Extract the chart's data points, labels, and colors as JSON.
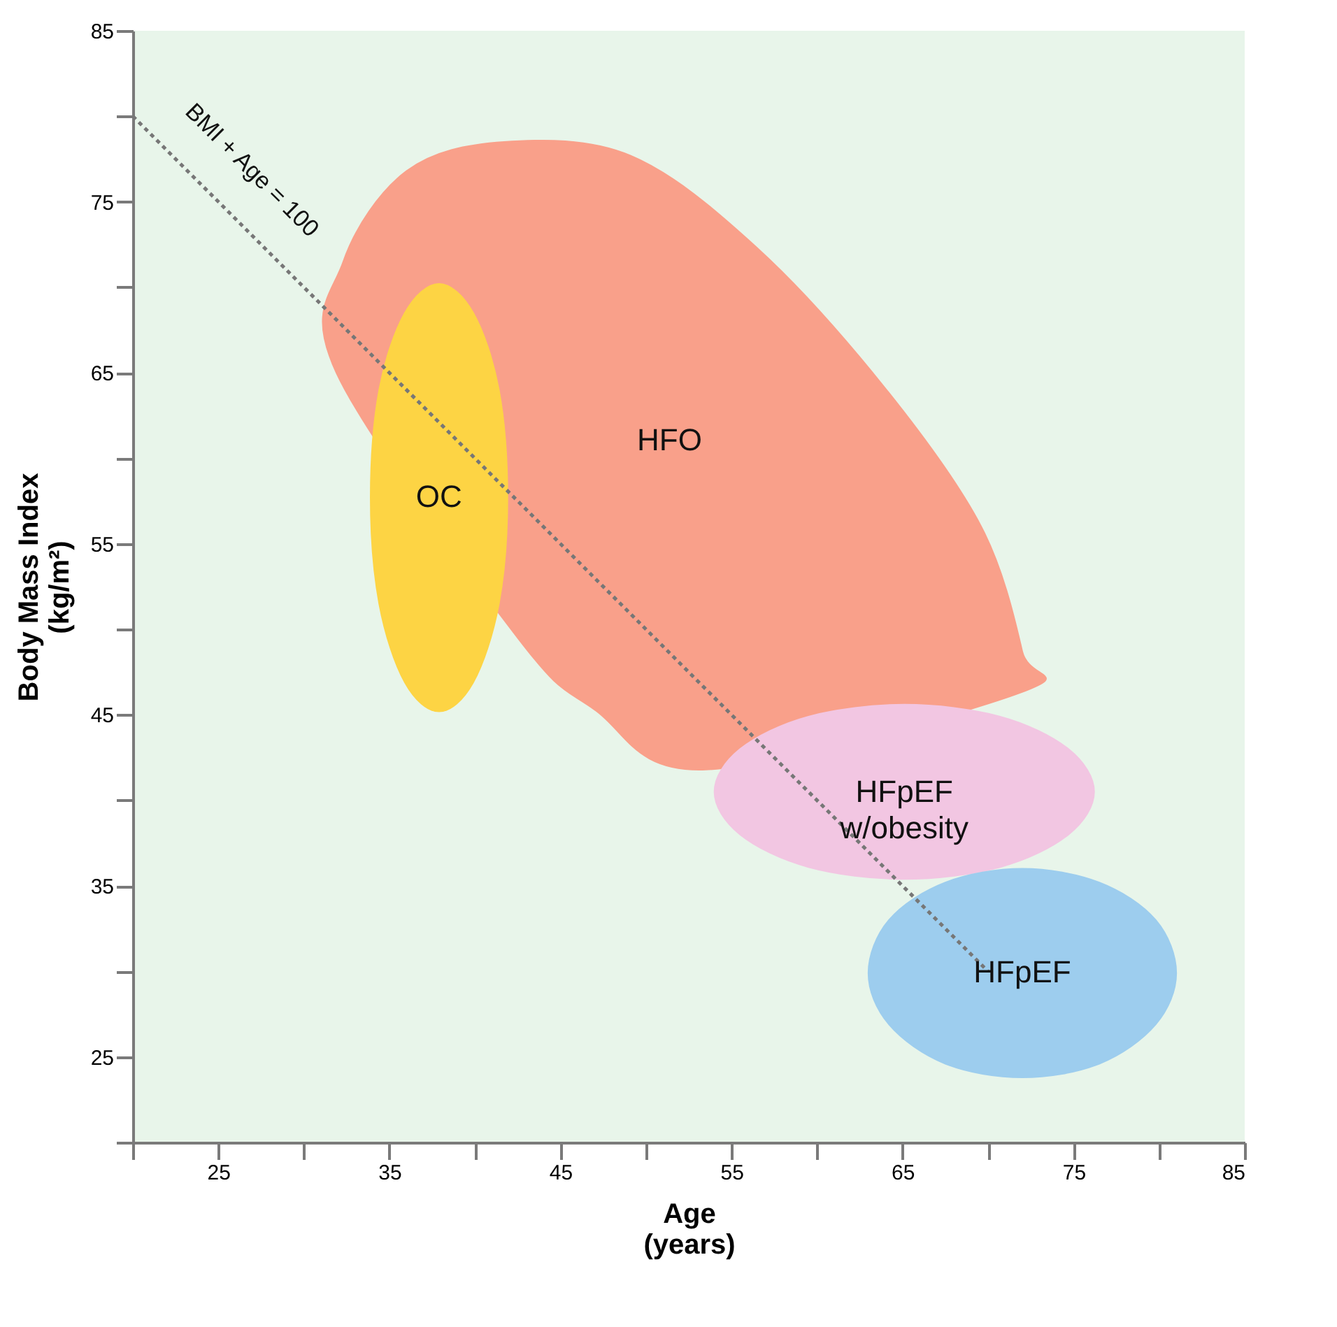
{
  "chart_data": {
    "type": "area",
    "xlabel": "Age\n(years)",
    "ylabel": "Body Mass Index\n(kg/m²)",
    "xlim": [
      20,
      85
    ],
    "ylim": [
      20,
      85
    ],
    "xticks": [
      {
        "value": 20,
        "label": null
      },
      25,
      {
        "value": 30,
        "label": null
      },
      35,
      {
        "value": 40,
        "label": null
      },
      45,
      {
        "value": 50,
        "label": null
      },
      55,
      {
        "value": 60,
        "label": null
      },
      65,
      {
        "value": 70,
        "label": null
      },
      75,
      {
        "value": 80,
        "label": null
      },
      85
    ],
    "yticks": [
      {
        "value": 20,
        "label": null
      },
      25,
      {
        "value": 30,
        "label": null
      },
      35,
      {
        "value": 40,
        "label": null
      },
      45,
      {
        "value": 50,
        "label": null
      },
      55,
      {
        "value": 60,
        "label": null
      },
      65,
      {
        "value": 70,
        "label": null
      },
      75,
      {
        "value": 80,
        "label": null
      },
      85
    ],
    "grid": false,
    "series": [
      {
        "name": "HFO",
        "color": "#f9a08a",
        "x": [
          41.7,
          49.1,
          56.5,
          63.9,
          69.6,
          72.0,
          71.9,
          53.5,
          47.0,
          42.5,
          31.9,
          32.3,
          36.0
        ],
        "values": [
          78.5,
          77.7,
          72.3,
          64.2,
          56.0,
          48.7,
          46.3,
          41.8,
          45.3,
          49.5,
          65.0,
          71.5,
          76.8
        ]
      },
      {
        "name": "OC",
        "color": "#fdd444",
        "x": [
          41.9,
          41.4,
          39.9,
          37.9,
          35.9,
          34.4,
          33.9,
          34.4,
          35.9,
          37.9,
          39.9,
          41.4
        ],
        "values": [
          57.7,
          64.0,
          68.5,
          70.2,
          68.5,
          64.0,
          57.7,
          51.5,
          46.9,
          45.2,
          46.9,
          51.5
        ]
      },
      {
        "name": "HFpEF w/obesity",
        "color": "#f2c6e2",
        "x": [
          76.2,
          74.7,
          70.7,
          65.1,
          59.5,
          55.5,
          54.0,
          55.5,
          59.5,
          65.1,
          70.7,
          74.7
        ],
        "values": [
          40.5,
          43.0,
          44.9,
          45.6,
          44.9,
          43.0,
          40.5,
          38.0,
          36.1,
          35.4,
          36.1,
          38.0
        ]
      },
      {
        "name": "HFpEF",
        "color": "#9dcdee",
        "x": [
          81.0,
          79.8,
          76.5,
          72.0,
          67.5,
          64.2,
          63.0,
          64.2,
          67.5,
          72.0,
          76.5,
          79.8
        ],
        "values": [
          29.9,
          33.0,
          35.2,
          36.0,
          35.2,
          33.0,
          29.9,
          26.9,
          24.6,
          23.8,
          24.6,
          26.9
        ]
      },
      {
        "type": "line",
        "color": "#777777",
        "line_style": "dotted",
        "x": [
          20,
          70
        ],
        "values": [
          80,
          30
        ]
      }
    ],
    "annotations": [
      "BMI + Age = 100"
    ]
  }
}
